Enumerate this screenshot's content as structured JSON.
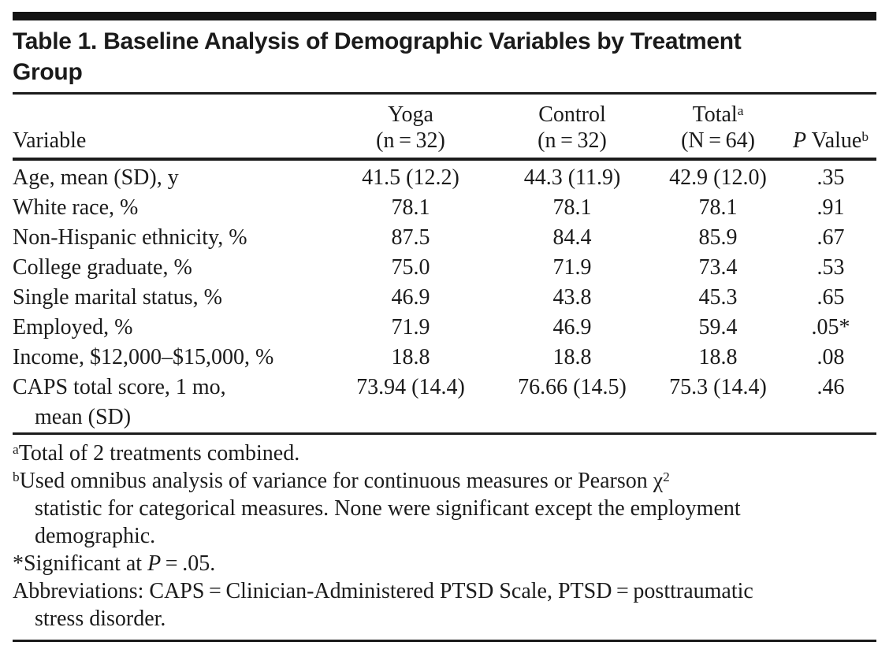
{
  "page": {
    "background_color": "#ffffff",
    "text_color": "#1b1b1b",
    "rule_color": "#1b1b1b"
  },
  "table": {
    "title_line1": "Table 1. Baseline Analysis of Demographic Variables by Treatment",
    "title_line2": "Group",
    "header": {
      "variable_label": "Variable",
      "yoga_line1": "Yoga",
      "yoga_line2": "(n = 32)",
      "control_line1": "Control",
      "control_line2": "(n = 32)",
      "total_line1": "Total",
      "total_sup": "a",
      "total_line2": "(N = 64)",
      "p_italic": "P",
      "p_label": " Value",
      "p_sup": "b"
    },
    "rows": [
      {
        "variable": "Age, mean (SD), y",
        "yoga": "41.5 (12.2)",
        "control": "44.3 (11.9)",
        "total": "42.9 (12.0)",
        "p": ".35"
      },
      {
        "variable": "White race, %",
        "yoga": "78.1",
        "control": "78.1",
        "total": "78.1",
        "p": ".91"
      },
      {
        "variable": "Non-Hispanic ethnicity, %",
        "yoga": "87.5",
        "control": "84.4",
        "total": "85.9",
        "p": ".67"
      },
      {
        "variable": "College graduate, %",
        "yoga": "75.0",
        "control": "71.9",
        "total": "73.4",
        "p": ".53"
      },
      {
        "variable": "Single marital status, %",
        "yoga": "46.9",
        "control": "43.8",
        "total": "45.3",
        "p": ".65"
      },
      {
        "variable": "Employed, %",
        "yoga": "71.9",
        "control": "46.9",
        "total": "59.4",
        "p": ".05*"
      },
      {
        "variable": "Income, $12,000–$15,000, %",
        "yoga": "18.8",
        "control": "18.8",
        "total": "18.8",
        "p": ".08"
      },
      {
        "variable": "CAPS total score, 1 mo,",
        "variable_line2": "mean (SD)",
        "yoga": "73.94 (14.4)",
        "control": "76.66 (14.5)",
        "total": "75.3 (14.4)",
        "p": ".46"
      }
    ],
    "footnotes": {
      "a": {
        "marker": "a",
        "text": "Total of 2 treatments combined."
      },
      "b": {
        "marker": "b",
        "line1": "Used omnibus analysis of variance for continuous measures or Pearson χ",
        "line1_sup": "2",
        "line2": "statistic for categorical measures. None were significant except the employment",
        "line3": "demographic."
      },
      "sig": {
        "marker": "*",
        "prefix": "Significant at ",
        "p_italic": "P",
        "suffix": " = .05."
      },
      "abbr": {
        "line1": "Abbreviations: CAPS = Clinician-Administered PTSD Scale, PTSD = posttraumatic",
        "line2": "stress disorder."
      }
    }
  }
}
